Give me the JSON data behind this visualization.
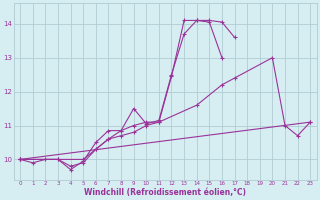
{
  "background_color": "#d6eef2",
  "grid_color": "#b0cdd4",
  "line_color": "#993399",
  "xlabel": "Windchill (Refroidissement éolien,°C)",
  "xlim": [
    -0.5,
    23.5
  ],
  "ylim": [
    9.4,
    14.6
  ],
  "yticks": [
    10,
    11,
    12,
    13,
    14
  ],
  "xticks": [
    0,
    1,
    2,
    3,
    4,
    5,
    6,
    7,
    8,
    9,
    10,
    11,
    12,
    13,
    14,
    15,
    16,
    17,
    18,
    19,
    20,
    21,
    22,
    23
  ],
  "series": [
    {
      "x": [
        0,
        1,
        2,
        3,
        4,
        5,
        6,
        7,
        8,
        9,
        10,
        11,
        12,
        13,
        14,
        15,
        16,
        17
      ],
      "y": [
        10.0,
        9.9,
        10.0,
        10.0,
        9.8,
        9.9,
        10.3,
        10.6,
        10.85,
        11.5,
        11.05,
        11.15,
        12.5,
        13.7,
        14.1,
        14.1,
        14.05,
        13.6
      ]
    },
    {
      "x": [
        0,
        3,
        4,
        5,
        6,
        7,
        8,
        9,
        10,
        11,
        12,
        13,
        14,
        15,
        16
      ],
      "y": [
        10.0,
        10.0,
        9.7,
        9.95,
        10.5,
        10.85,
        10.85,
        11.0,
        11.1,
        11.1,
        12.45,
        14.1,
        14.1,
        14.05,
        13.0
      ]
    },
    {
      "x": [
        0,
        5,
        6,
        7,
        8,
        9,
        10,
        11,
        14,
        16,
        17,
        20,
        21,
        22,
        23
      ],
      "y": [
        10.0,
        10.0,
        10.3,
        10.6,
        10.7,
        10.8,
        11.0,
        11.1,
        11.6,
        12.2,
        12.4,
        13.0,
        11.0,
        10.7,
        11.1
      ]
    },
    {
      "x": [
        0,
        23
      ],
      "y": [
        10.0,
        11.1
      ]
    }
  ]
}
